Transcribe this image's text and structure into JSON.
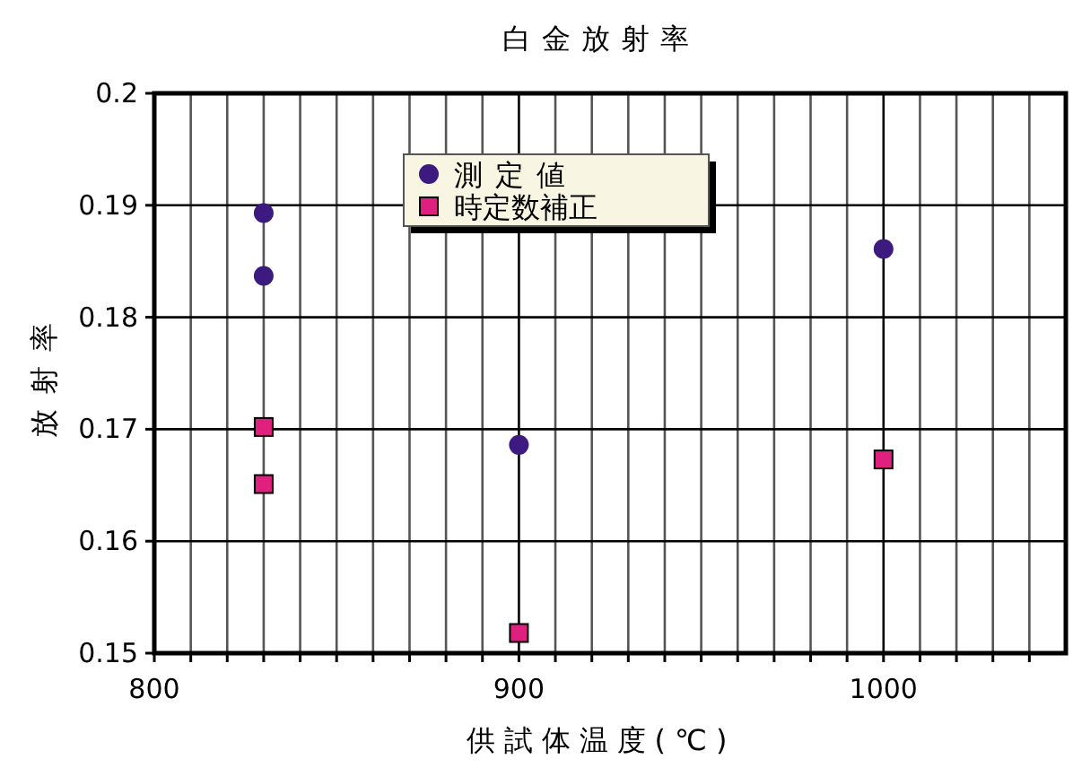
{
  "chart_data": {
    "type": "scatter",
    "title": "白金放射率",
    "xlabel": "供試体温度(℃)",
    "ylabel": "放射率",
    "xlim": [
      800,
      1050
    ],
    "ylim": [
      0.15,
      0.2
    ],
    "xticks": [
      800,
      {
        "value": 810,
        "label": null
      },
      {
        "value": 820,
        "label": null
      },
      {
        "value": 830,
        "label": null
      },
      {
        "value": 840,
        "label": null
      },
      {
        "value": 850,
        "label": null
      },
      {
        "value": 860,
        "label": null
      },
      {
        "value": 870,
        "label": null
      },
      {
        "value": 880,
        "label": null
      },
      {
        "value": 890,
        "label": null
      },
      900,
      {
        "value": 910,
        "label": null
      },
      {
        "value": 920,
        "label": null
      },
      {
        "value": 930,
        "label": null
      },
      {
        "value": 940,
        "label": null
      },
      {
        "value": 950,
        "label": null
      },
      {
        "value": 960,
        "label": null
      },
      {
        "value": 970,
        "label": null
      },
      {
        "value": 980,
        "label": null
      },
      {
        "value": 990,
        "label": null
      },
      1000,
      {
        "value": 1010,
        "label": null
      },
      {
        "value": 1020,
        "label": null
      },
      {
        "value": 1030,
        "label": null
      },
      {
        "value": 1040,
        "label": null
      }
    ],
    "yticks": [
      0.15,
      0.16,
      0.17,
      0.18,
      0.19,
      0.2
    ],
    "grid": true,
    "legend": "top",
    "series": [
      {
        "name": "測定値",
        "color": "#3d1a80",
        "marker": "circle",
        "x": [
          830,
          830,
          900,
          1000
        ],
        "values": [
          0.1893,
          0.1837,
          0.1686,
          0.1861
        ]
      },
      {
        "name": "時定数補正",
        "color": "#e0207f",
        "marker": "square",
        "x": [
          830,
          830,
          900,
          1000
        ],
        "values": [
          0.1702,
          0.1651,
          0.1518,
          0.1673
        ]
      }
    ]
  }
}
